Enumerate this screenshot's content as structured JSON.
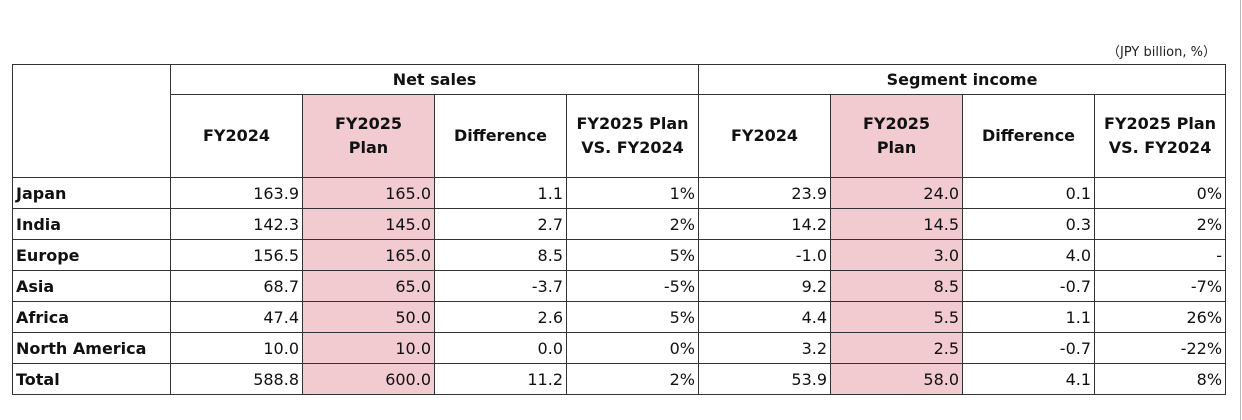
{
  "unit_note": "（JPY billion, %）",
  "groups": {
    "net_sales": "Net sales",
    "segment_income": "Segment income"
  },
  "columns": {
    "fy2024": "FY2024",
    "fy2025_plan": "FY2025 Plan",
    "difference": "Difference",
    "plan_vs": "FY2025 Plan VS. FY2024"
  },
  "rows": [
    {
      "region": "Japan",
      "ns_fy2024": "163.9",
      "ns_plan": "165.0",
      "ns_diff": "1.1",
      "ns_pct": "1%",
      "si_fy2024": "23.9",
      "si_plan": "24.0",
      "si_diff": "0.1",
      "si_pct": "0%"
    },
    {
      "region": "India",
      "ns_fy2024": "142.3",
      "ns_plan": "145.0",
      "ns_diff": "2.7",
      "ns_pct": "2%",
      "si_fy2024": "14.2",
      "si_plan": "14.5",
      "si_diff": "0.3",
      "si_pct": "2%"
    },
    {
      "region": "Europe",
      "ns_fy2024": "156.5",
      "ns_plan": "165.0",
      "ns_diff": "8.5",
      "ns_pct": "5%",
      "si_fy2024": "-1.0",
      "si_plan": "3.0",
      "si_diff": "4.0",
      "si_pct": "-"
    },
    {
      "region": "Asia",
      "ns_fy2024": "68.7",
      "ns_plan": "65.0",
      "ns_diff": "-3.7",
      "ns_pct": "-5%",
      "si_fy2024": "9.2",
      "si_plan": "8.5",
      "si_diff": "-0.7",
      "si_pct": "-7%"
    },
    {
      "region": "Africa",
      "ns_fy2024": "47.4",
      "ns_plan": "50.0",
      "ns_diff": "2.6",
      "ns_pct": "5%",
      "si_fy2024": "4.4",
      "si_plan": "5.5",
      "si_diff": "1.1",
      "si_pct": "26%"
    },
    {
      "region": "North America",
      "ns_fy2024": "10.0",
      "ns_plan": "10.0",
      "ns_diff": "0.0",
      "ns_pct": "0%",
      "si_fy2024": "3.2",
      "si_plan": "2.5",
      "si_diff": "-0.7",
      "si_pct": "-22%"
    },
    {
      "region": "Total",
      "ns_fy2024": "588.8",
      "ns_plan": "600.0",
      "ns_diff": "11.2",
      "ns_pct": "2%",
      "si_fy2024": "53.9",
      "si_plan": "58.0",
      "si_diff": "4.1",
      "si_pct": "8%"
    }
  ],
  "colors": {
    "plan_highlight": "#f2cbd1"
  }
}
